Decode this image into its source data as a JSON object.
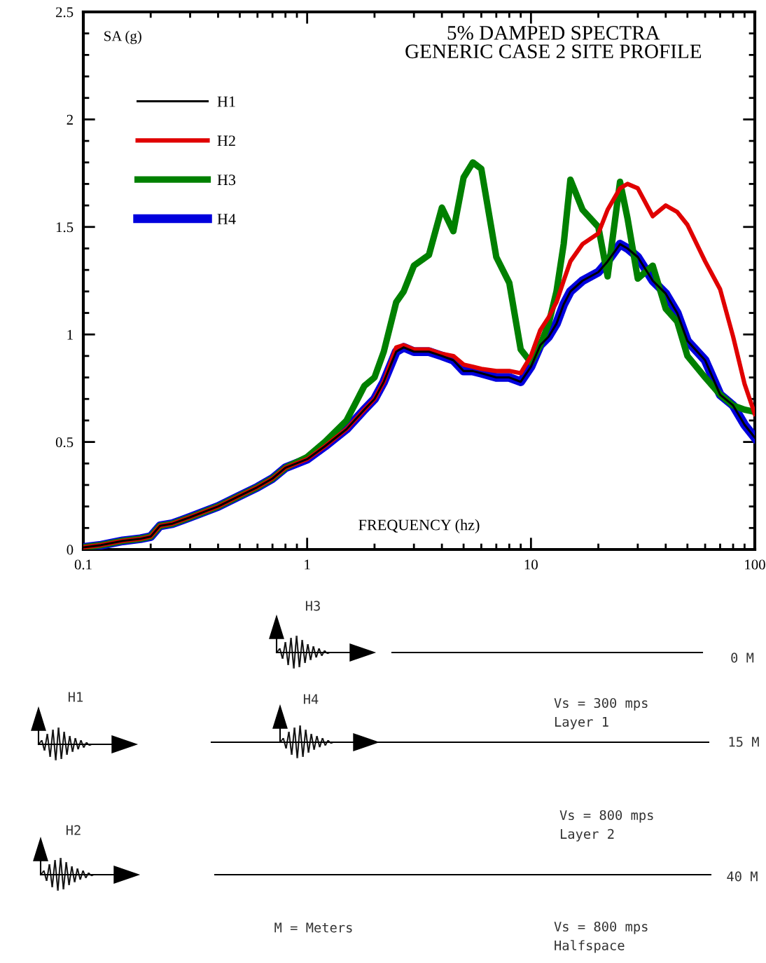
{
  "chart_data": {
    "type": "line",
    "title": "5% DAMPED SPECTRA\nGENERIC CASE 2 SITE PROFILE",
    "xlabel": "FREQUENCY (hz)",
    "ylabel": "SA (g)",
    "x": [
      0.1,
      0.12,
      0.15,
      0.18,
      0.2,
      0.22,
      0.25,
      0.3,
      0.4,
      0.5,
      0.6,
      0.7,
      0.8,
      1.0,
      1.2,
      1.5,
      1.8,
      2.0,
      2.2,
      2.5,
      2.7,
      3.0,
      3.5,
      4.0,
      4.5,
      5.0,
      5.5,
      6.0,
      7.0,
      8.0,
      9.0,
      10,
      11,
      12,
      13,
      14,
      15,
      17,
      20,
      22,
      25,
      27,
      30,
      35,
      40,
      45,
      50,
      60,
      70,
      80,
      90,
      100
    ],
    "series": [
      {
        "name": "H1",
        "color": "#000000",
        "values": [
          0.01,
          0.02,
          0.04,
          0.05,
          0.06,
          0.11,
          0.12,
          0.15,
          0.2,
          0.25,
          0.29,
          0.33,
          0.38,
          0.42,
          0.48,
          0.56,
          0.65,
          0.7,
          0.78,
          0.92,
          0.94,
          0.92,
          0.92,
          0.9,
          0.88,
          0.83,
          0.83,
          0.82,
          0.8,
          0.8,
          0.78,
          0.85,
          0.95,
          0.99,
          1.05,
          1.14,
          1.2,
          1.25,
          1.29,
          1.34,
          1.42,
          1.4,
          1.36,
          1.25,
          1.19,
          1.1,
          0.97,
          0.88,
          0.72,
          0.67,
          0.58,
          0.52
        ]
      },
      {
        "name": "H2",
        "color": "#e00000",
        "values": [
          0.01,
          0.02,
          0.04,
          0.05,
          0.06,
          0.11,
          0.12,
          0.15,
          0.2,
          0.25,
          0.29,
          0.33,
          0.38,
          0.42,
          0.48,
          0.56,
          0.65,
          0.7,
          0.78,
          0.94,
          0.95,
          0.93,
          0.93,
          0.91,
          0.9,
          0.86,
          0.85,
          0.84,
          0.83,
          0.83,
          0.82,
          0.9,
          1.02,
          1.08,
          1.15,
          1.25,
          1.34,
          1.42,
          1.47,
          1.58,
          1.68,
          1.7,
          1.68,
          1.55,
          1.6,
          1.57,
          1.51,
          1.34,
          1.21,
          0.99,
          0.77,
          0.63
        ]
      },
      {
        "name": "H3",
        "color": "#008000",
        "values": [
          0.01,
          0.02,
          0.04,
          0.05,
          0.06,
          0.11,
          0.12,
          0.15,
          0.2,
          0.25,
          0.29,
          0.33,
          0.38,
          0.43,
          0.5,
          0.6,
          0.76,
          0.8,
          0.92,
          1.15,
          1.2,
          1.32,
          1.37,
          1.59,
          1.48,
          1.73,
          1.8,
          1.77,
          1.36,
          1.24,
          0.93,
          0.87,
          0.95,
          1.05,
          1.2,
          1.42,
          1.72,
          1.58,
          1.5,
          1.27,
          1.71,
          1.54,
          1.26,
          1.32,
          1.12,
          1.06,
          0.9,
          0.8,
          0.72,
          0.67,
          0.65,
          0.64
        ]
      },
      {
        "name": "H4",
        "color": "#0000dd",
        "values": [
          0.01,
          0.02,
          0.04,
          0.05,
          0.06,
          0.11,
          0.12,
          0.15,
          0.2,
          0.25,
          0.29,
          0.33,
          0.38,
          0.42,
          0.48,
          0.56,
          0.65,
          0.7,
          0.78,
          0.92,
          0.94,
          0.92,
          0.92,
          0.9,
          0.88,
          0.83,
          0.83,
          0.82,
          0.8,
          0.8,
          0.78,
          0.85,
          0.95,
          0.99,
          1.05,
          1.14,
          1.2,
          1.25,
          1.29,
          1.34,
          1.42,
          1.4,
          1.36,
          1.25,
          1.19,
          1.1,
          0.97,
          0.88,
          0.72,
          0.67,
          0.58,
          0.52
        ]
      }
    ],
    "log": "x",
    "xlim": [
      0.1,
      100
    ],
    "xticks": [
      0.1,
      1,
      10,
      100
    ],
    "ylim": [
      0,
      2.5
    ],
    "yticks": [
      0,
      0.5,
      1,
      1.5,
      2,
      2.5
    ],
    "grid": false,
    "legend": "top left",
    "annotations": [
      "H3",
      "0 M",
      "H1",
      "H4",
      "Vs = 300 mps\nLayer 1",
      "15 M",
      "Vs = 800 mps\nLayer 2",
      "H2",
      "40 M",
      "M = Meters",
      "Vs = 800 mps\nHalfspace"
    ]
  }
}
